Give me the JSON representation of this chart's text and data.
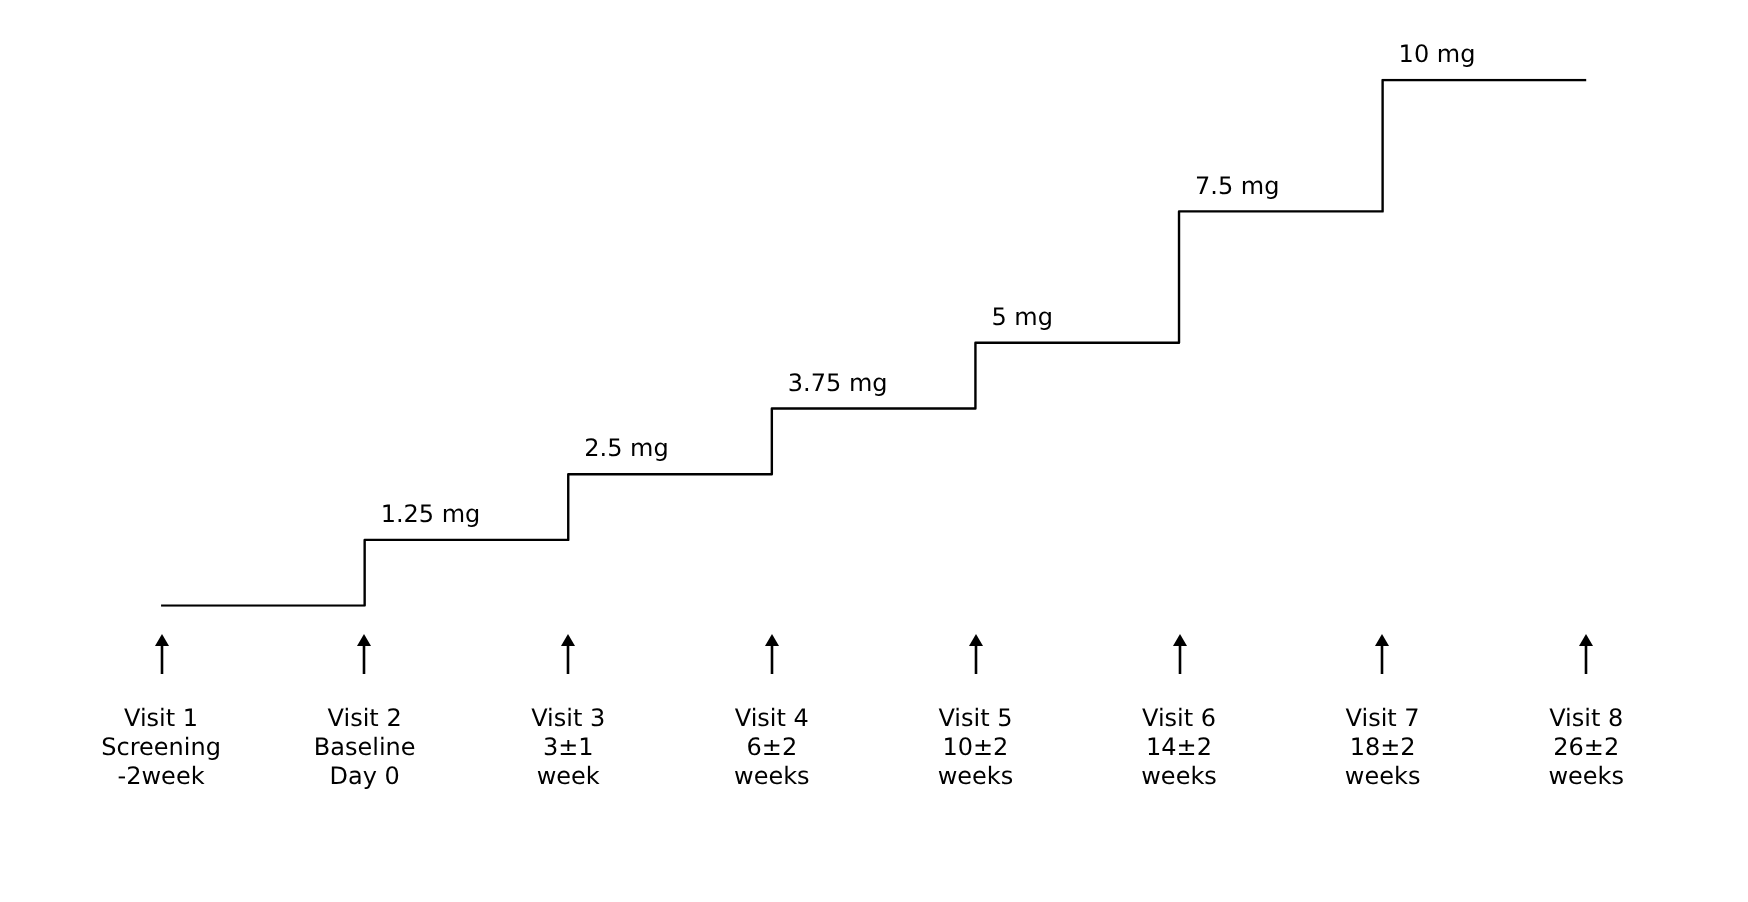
{
  "chart_data": {
    "type": "step",
    "categories": [
      "Visit 1\nScreening\n-2week",
      "Visit 2\nBaseline\nDay 0",
      "Visit 3\n3±1\nweek",
      "Visit 4\n6±2\nweeks",
      "Visit 5\n10±2\nweeks",
      "Visit 6\n14±2\nweeks",
      "Visit 7\n18±2\nweeks",
      "Visit 8\n26±2\nweeks"
    ],
    "values": [
      0,
      1.25,
      2.5,
      3.75,
      5,
      7.5,
      10,
      10
    ],
    "value_labels": [
      null,
      "1.25 mg",
      "2.5 mg",
      "3.75 mg",
      "5 mg",
      "7.5 mg",
      "10 mg",
      null
    ],
    "color": "#000000",
    "grid": false,
    "legend": false,
    "marker": "none",
    "tick_labels": "x"
  }
}
